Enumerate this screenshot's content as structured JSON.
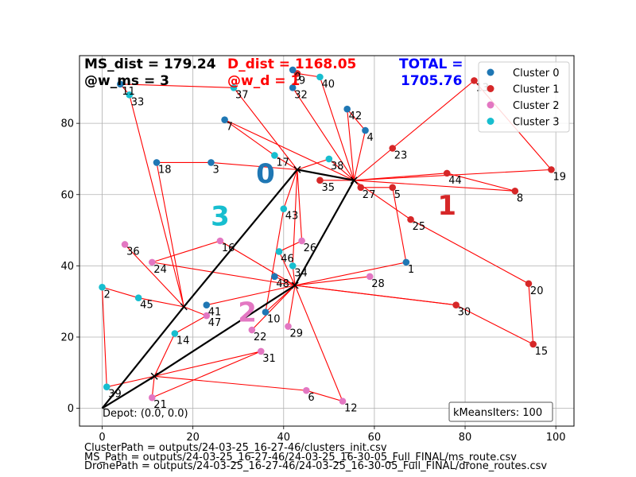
{
  "header": {
    "ms_dist": "MS_dist = 179.24",
    "w_ms": "@w_ms = 3",
    "d_dist": "D_dist = 1168.05",
    "w_d": "@w_d = 1",
    "total_label": "TOTAL =",
    "total_value": "1705.76"
  },
  "footer": {
    "cluster_path": "ClusterPath = outputs/24-03-25_16-27-46/clusters_init.csv",
    "ms_path": "MS_Path = outputs/24-03-25_16-27-46/24-03-25_16-30-05_Full_FINAL/ms_route.csv",
    "drone_path": "DronePath = outputs/24-03-25_16-27-46/24-03-25_16-30-05_Full_FINAL/drone_routes.csv"
  },
  "kmeans_box": "kMeansIters: 100",
  "depot_label": "Depot: (0.0, 0.0)",
  "colors": {
    "cluster0": "#1f77b4",
    "cluster1": "#d62728",
    "cluster2": "#e377c2",
    "cluster3": "#17becf",
    "route": "#ff0000",
    "ms_route": "#000000"
  },
  "chart_data": {
    "type": "scatter",
    "xlim": [
      -5,
      104
    ],
    "ylim": [
      -5,
      99
    ],
    "xticks": [
      0,
      20,
      40,
      60,
      80,
      100
    ],
    "yticks": [
      0,
      20,
      40,
      60,
      80
    ],
    "grid": true,
    "legend": {
      "placement": "top-right",
      "entries": [
        "Cluster 0",
        "Cluster 1",
        "Cluster 2",
        "Cluster 3"
      ]
    },
    "cluster_labels": [
      {
        "text": "0",
        "cluster": 0,
        "x": 36,
        "y": 66
      },
      {
        "text": "1",
        "cluster": 1,
        "x": 76,
        "y": 57
      },
      {
        "text": "2",
        "cluster": 2,
        "x": 32,
        "y": 27
      },
      {
        "text": "3",
        "cluster": 3,
        "x": 26,
        "y": 54
      }
    ],
    "points": [
      {
        "id": "1",
        "x": 67,
        "y": 41,
        "cluster": 0
      },
      {
        "id": "2",
        "x": 0,
        "y": 34,
        "cluster": 3
      },
      {
        "id": "3",
        "x": 24,
        "y": 69,
        "cluster": 0
      },
      {
        "id": "4",
        "x": 58,
        "y": 78,
        "cluster": 0
      },
      {
        "id": "5",
        "x": 64,
        "y": 62,
        "cluster": 1
      },
      {
        "id": "6",
        "x": 45,
        "y": 5,
        "cluster": 2
      },
      {
        "id": "7",
        "x": 27,
        "y": 81,
        "cluster": 0
      },
      {
        "id": "8",
        "x": 91,
        "y": 61,
        "cluster": 1
      },
      {
        "id": "9",
        "x": 43,
        "y": 94,
        "cluster": 1
      },
      {
        "id": "10",
        "x": 36,
        "y": 27,
        "cluster": 0
      },
      {
        "id": "11",
        "x": 4,
        "y": 91,
        "cluster": 0
      },
      {
        "id": "12",
        "x": 53,
        "y": 2,
        "cluster": 2
      },
      {
        "id": "13",
        "x": 82,
        "y": 92,
        "cluster": 1
      },
      {
        "id": "14",
        "x": 16,
        "y": 21,
        "cluster": 3
      },
      {
        "id": "15",
        "x": 95,
        "y": 18,
        "cluster": 1
      },
      {
        "id": "16",
        "x": 26,
        "y": 47,
        "cluster": 2
      },
      {
        "id": "17",
        "x": 38,
        "y": 71,
        "cluster": 3
      },
      {
        "id": "18",
        "x": 12,
        "y": 69,
        "cluster": 0
      },
      {
        "id": "19",
        "x": 99,
        "y": 67,
        "cluster": 1
      },
      {
        "id": "20",
        "x": 94,
        "y": 35,
        "cluster": 1
      },
      {
        "id": "21",
        "x": 11,
        "y": 3,
        "cluster": 2
      },
      {
        "id": "22",
        "x": 33,
        "y": 22,
        "cluster": 2
      },
      {
        "id": "23",
        "x": 64,
        "y": 73,
        "cluster": 1
      },
      {
        "id": "24",
        "x": 11,
        "y": 41,
        "cluster": 2
      },
      {
        "id": "25",
        "x": 68,
        "y": 53,
        "cluster": 1
      },
      {
        "id": "26",
        "x": 44,
        "y": 47,
        "cluster": 2
      },
      {
        "id": "27",
        "x": 57,
        "y": 62,
        "cluster": 1
      },
      {
        "id": "28",
        "x": 59,
        "y": 37,
        "cluster": 2
      },
      {
        "id": "29",
        "x": 41,
        "y": 23,
        "cluster": 2
      },
      {
        "id": "30",
        "x": 78,
        "y": 29,
        "cluster": 1
      },
      {
        "id": "31",
        "x": 35,
        "y": 16,
        "cluster": 2
      },
      {
        "id": "32",
        "x": 42,
        "y": 90,
        "cluster": 0
      },
      {
        "id": "33",
        "x": 6,
        "y": 88,
        "cluster": 3
      },
      {
        "id": "34",
        "x": 42,
        "y": 40,
        "cluster": 3
      },
      {
        "id": "35",
        "x": 48,
        "y": 64,
        "cluster": 1
      },
      {
        "id": "36",
        "x": 5,
        "y": 46,
        "cluster": 2
      },
      {
        "id": "37",
        "x": 29,
        "y": 90,
        "cluster": 3
      },
      {
        "id": "38",
        "x": 50,
        "y": 70,
        "cluster": 3
      },
      {
        "id": "39",
        "x": 1,
        "y": 6,
        "cluster": 3
      },
      {
        "id": "40",
        "x": 48,
        "y": 93,
        "cluster": 3
      },
      {
        "id": "41",
        "x": 23,
        "y": 29,
        "cluster": 0
      },
      {
        "id": "42",
        "x": 54,
        "y": 84,
        "cluster": 0
      },
      {
        "id": "43",
        "x": 40,
        "y": 56,
        "cluster": 3
      },
      {
        "id": "44",
        "x": 76,
        "y": 66,
        "cluster": 1
      },
      {
        "id": "45",
        "x": 8,
        "y": 31,
        "cluster": 3
      },
      {
        "id": "46",
        "x": 39,
        "y": 44,
        "cluster": 3
      },
      {
        "id": "47",
        "x": 23,
        "y": 26,
        "cluster": 2
      },
      {
        "id": "48",
        "x": 38,
        "y": 37,
        "cluster": 0
      },
      {
        "id": "0",
        "x": 42,
        "y": 95,
        "cluster": 0
      }
    ],
    "ms_route": [
      [
        0,
        0
      ],
      [
        11.5,
        9
      ],
      [
        42.5,
        34.5
      ],
      [
        55.5,
        64
      ],
      [
        43,
        67
      ],
      [
        18,
        28.5
      ],
      [
        0,
        0
      ]
    ],
    "stops": [
      [
        11.5,
        9
      ],
      [
        42.5,
        34.5
      ],
      [
        55.5,
        64
      ],
      [
        43,
        67
      ],
      [
        18,
        28.5
      ]
    ],
    "drone_routes": [
      [
        [
          55.5,
          64
        ],
        [
          42,
          90
        ],
        [
          43,
          94
        ],
        [
          48,
          93
        ],
        [
          55.5,
          64
        ]
      ],
      [
        [
          55.5,
          64
        ],
        [
          54,
          84
        ],
        [
          58,
          78
        ],
        [
          55.5,
          64
        ]
      ],
      [
        [
          55.5,
          64
        ],
        [
          64,
          73
        ],
        [
          82,
          92
        ],
        [
          99,
          67
        ],
        [
          55.5,
          64
        ]
      ],
      [
        [
          55.5,
          64
        ],
        [
          91,
          61
        ],
        [
          76,
          66
        ],
        [
          55.5,
          64
        ]
      ],
      [
        [
          55.5,
          64
        ],
        [
          68,
          53
        ],
        [
          94,
          35
        ],
        [
          95,
          18
        ],
        [
          78,
          29
        ],
        [
          42.5,
          34.5
        ]
      ],
      [
        [
          55.5,
          64
        ],
        [
          57,
          62
        ],
        [
          64,
          62
        ],
        [
          67,
          41
        ],
        [
          42.5,
          34.5
        ]
      ],
      [
        [
          55.5,
          64
        ],
        [
          48,
          64
        ],
        [
          55.5,
          64
        ]
      ],
      [
        [
          55.5,
          64
        ],
        [
          50,
          70
        ],
        [
          43,
          67
        ]
      ],
      [
        [
          43,
          67
        ],
        [
          38,
          71
        ],
        [
          27,
          81
        ],
        [
          55.5,
          64
        ]
      ],
      [
        [
          43,
          67
        ],
        [
          29,
          90
        ],
        [
          4,
          91
        ],
        [
          6,
          88
        ],
        [
          18,
          28.5
        ]
      ],
      [
        [
          43,
          67
        ],
        [
          24,
          69
        ],
        [
          12,
          69
        ],
        [
          18,
          28.5
        ]
      ],
      [
        [
          43,
          67
        ],
        [
          40,
          56
        ],
        [
          36,
          27
        ],
        [
          42.5,
          34.5
        ]
      ],
      [
        [
          43,
          67
        ],
        [
          44,
          47
        ],
        [
          39,
          44
        ],
        [
          42.5,
          34.5
        ]
      ],
      [
        [
          43,
          67
        ],
        [
          42,
          40
        ],
        [
          42.5,
          34.5
        ]
      ],
      [
        [
          42.5,
          34.5
        ],
        [
          59,
          37
        ],
        [
          42.5,
          34.5
        ]
      ],
      [
        [
          42.5,
          34.5
        ],
        [
          38,
          37
        ],
        [
          42.5,
          34.5
        ]
      ],
      [
        [
          42.5,
          34.5
        ],
        [
          41,
          23
        ],
        [
          42.5,
          34.5
        ]
      ],
      [
        [
          42.5,
          34.5
        ],
        [
          33,
          22
        ],
        [
          42.5,
          34.5
        ]
      ],
      [
        [
          42.5,
          34.5
        ],
        [
          23,
          29
        ],
        [
          42.5,
          34.5
        ]
      ],
      [
        [
          42.5,
          34.5
        ],
        [
          78,
          29
        ],
        [
          42.5,
          34.5
        ]
      ],
      [
        [
          42.5,
          34.5
        ],
        [
          26,
          47
        ],
        [
          11,
          41
        ],
        [
          42.5,
          34.5
        ]
      ],
      [
        [
          18,
          28.5
        ],
        [
          5,
          46
        ],
        [
          18,
          28.5
        ]
      ],
      [
        [
          18,
          28.5
        ],
        [
          8,
          31
        ],
        [
          0,
          34
        ],
        [
          1,
          6
        ],
        [
          11.5,
          9
        ]
      ],
      [
        [
          18,
          28.5
        ],
        [
          23,
          26
        ],
        [
          16,
          21
        ],
        [
          11.5,
          9
        ]
      ],
      [
        [
          11.5,
          9
        ],
        [
          35,
          16
        ],
        [
          11,
          3
        ],
        [
          11.5,
          9
        ]
      ],
      [
        [
          11.5,
          9
        ],
        [
          45,
          5
        ],
        [
          53,
          2
        ],
        [
          42.5,
          34.5
        ]
      ]
    ]
  }
}
